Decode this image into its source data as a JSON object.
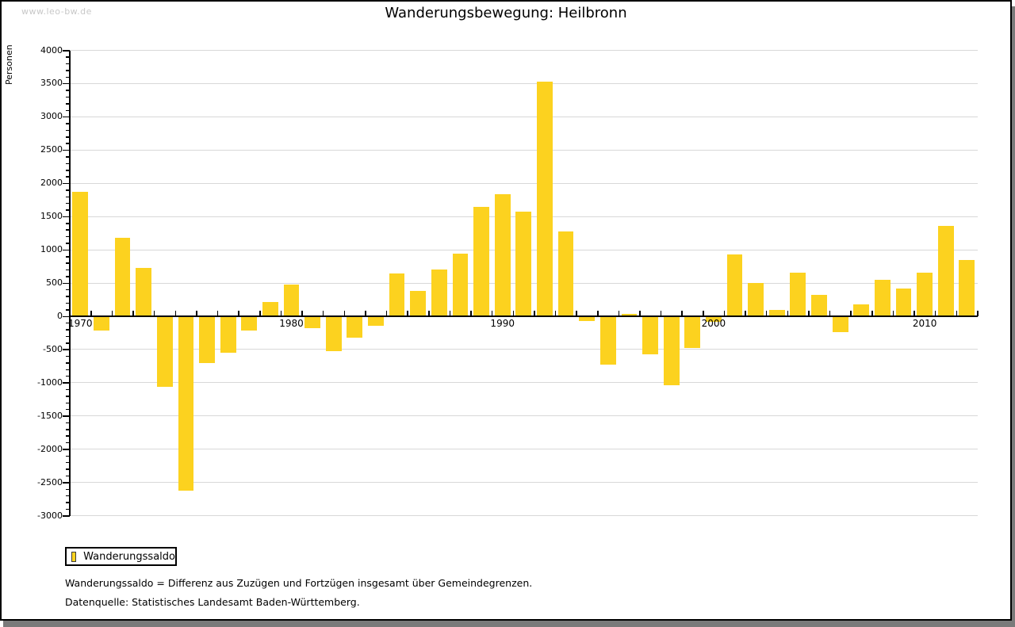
{
  "watermark": "www.leo-bw.de",
  "title": "Wanderungsbewegung: Heilbronn",
  "y_axis_label": "Personen",
  "legend": {
    "label": "Wanderungssaldo"
  },
  "footnotes": [
    "Wanderungssaldo = Differenz aus Zuzügen und Fortzügen insgesamt über Gemeindegrenzen.",
    "Datenquelle: Statistisches Landesamt Baden-Württemberg."
  ],
  "colors": {
    "bar": "#fcd21f",
    "grid": "#d8d8d8",
    "axis": "#000000",
    "watermark": "#c8c8c8",
    "page_shadow": "#7a7a7a",
    "swatch_border": "#3c3c3c"
  },
  "chart_data": {
    "type": "bar",
    "title": "Wanderungsbewegung: Heilbronn",
    "xlabel": "",
    "ylabel": "Personen",
    "ylim": [
      -3000,
      4000
    ],
    "ytick_step": 500,
    "ytick_minor_step": 100,
    "grid": true,
    "legend_position": "bottom-left",
    "xticks_labeled": [
      1970,
      1980,
      1990,
      2000,
      2010
    ],
    "x": [
      1970,
      1971,
      1972,
      1973,
      1974,
      1975,
      1976,
      1977,
      1978,
      1979,
      1980,
      1981,
      1982,
      1983,
      1984,
      1985,
      1986,
      1987,
      1988,
      1989,
      1990,
      1991,
      1992,
      1993,
      1994,
      1995,
      1996,
      1997,
      1998,
      1999,
      2000,
      2001,
      2002,
      2003,
      2004,
      2005,
      2006,
      2007,
      2008,
      2009,
      2010,
      2011,
      2012
    ],
    "series": [
      {
        "name": "Wanderungssaldo",
        "values": [
          1870,
          -210,
          1180,
          730,
          -1060,
          -2620,
          -700,
          -550,
          -210,
          210,
          480,
          -180,
          -520,
          -320,
          -140,
          640,
          380,
          700,
          940,
          1640,
          1840,
          1580,
          3530,
          1280,
          -70,
          -730,
          30,
          -570,
          -1040,
          -480,
          -80,
          930,
          500,
          90,
          660,
          320,
          -240,
          180,
          550,
          420,
          660,
          1360,
          850
        ]
      }
    ]
  }
}
